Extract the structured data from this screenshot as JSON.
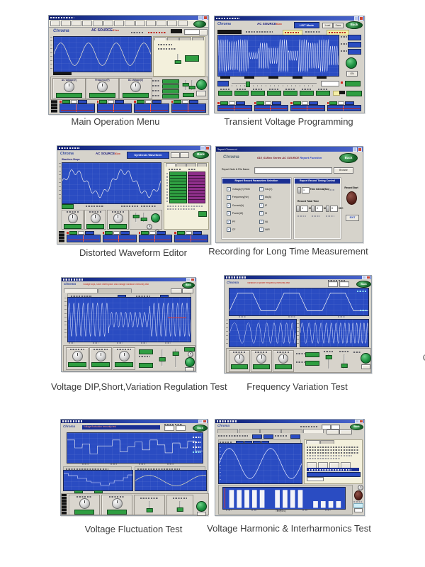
{
  "brand": {
    "logo": "Chroma",
    "app_title": "AC SOURCE",
    "app_title_accent": "61xx"
  },
  "buttons": {
    "back": "Back",
    "load": "Load",
    "save": "Save"
  },
  "captions": {
    "main": "Main Operation Menu",
    "transient": "Transient Voltage Programming",
    "distorted": "Distorted Waveform Editor",
    "recording": "Recording for Long Time Measurement",
    "dip": "Voltage DIP,Short,Variation Regulation Test",
    "freq": "Frequency Variation Test",
    "fluct": "Voltage Fluctuation Test",
    "harmonic": "Voltage Harmonic & Interharmonics Test"
  },
  "main": {
    "knobs": [
      "AC Voltage(V)",
      "Frequency(F)",
      "DC Voltage(V)"
    ]
  },
  "transient": {
    "mode_label": "LIST Mode",
    "on_label": "ON"
  },
  "distorted": {
    "shape_label": "Waveform Shape",
    "synthesis_label": "Synthesis Waveform"
  },
  "recording": {
    "window_title": "Report Chroma.vi",
    "logo": "Chroma",
    "title": "615_61Mxx Series AC SOURCE",
    "title_suffix": "Report Function",
    "file_label": "Report Note & File Name",
    "browse": "Browse",
    "params_title": "Report Record Parameters Selection",
    "timing_title": "Report Record Timing Control",
    "checks_col1": [
      "Voltage(V) RMS",
      "Frequency(Hz)",
      "Current(A)",
      "Power(W)",
      "PF",
      "CF"
    ],
    "checks_col2": [
      "Vdc(V)",
      "Idc(A)",
      "IP",
      "IS",
      "VA",
      "VAR"
    ],
    "interval_value": "1",
    "interval_label": "Time Interval(Sec)",
    "total_time_label": "Record Total Time",
    "spinners": [
      {
        "value": "1",
        "unit": "HR"
      },
      {
        "value": "0",
        "unit": "MIN"
      },
      {
        "value": "0",
        "unit": "SEC"
      }
    ],
    "record_start_label": "Record Start",
    "exit_label": "EXIT"
  },
  "dip": {
    "title": "Voltage dips, short interruption and voltage variation immunity test"
  },
  "freq": {
    "title": "Variation of power frequency immunity test"
  },
  "fluct": {
    "title": "Voltage fluctuation immunity test"
  },
  "harmonic": {
    "xlabel": "Time(Sec)",
    "bars": [
      0.8,
      0.8,
      0.8,
      0.8,
      0.8,
      0,
      0.8,
      0.8,
      0.8,
      0.8,
      0,
      0.3,
      0.3,
      0.3,
      0.3
    ]
  },
  "colors": {
    "scope_blue": "#2a4cc2",
    "panel_gray": "#d6d3cb",
    "green": "#2f9e41",
    "purple": "#8e2f8a",
    "titlebar_navy": "#1a2f93",
    "back_green": "#156228",
    "record_maroon": "#53201a",
    "cream": "#f3f0dc",
    "caption_gray": "#3c3c3c"
  }
}
